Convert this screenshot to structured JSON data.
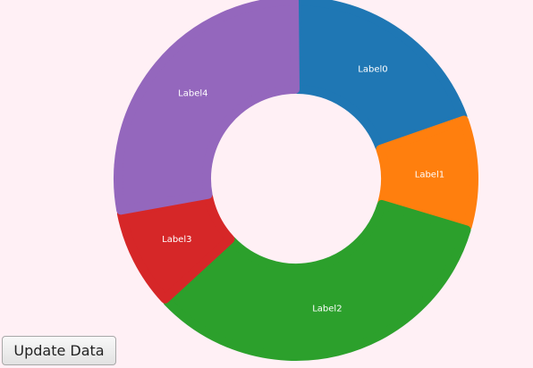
{
  "chart_data": {
    "type": "pie",
    "categories": [
      "Label0",
      "Label1",
      "Label2",
      "Label3",
      "Label4"
    ],
    "values": [
      19.5,
      10.0,
      33.5,
      9.0,
      28.0
    ],
    "colors": [
      "#1f77b4",
      "#ff7f0e",
      "#2ca02c",
      "#d62728",
      "#9467bd"
    ],
    "donut": true
  },
  "controls": {
    "update_label": "Update Data"
  }
}
